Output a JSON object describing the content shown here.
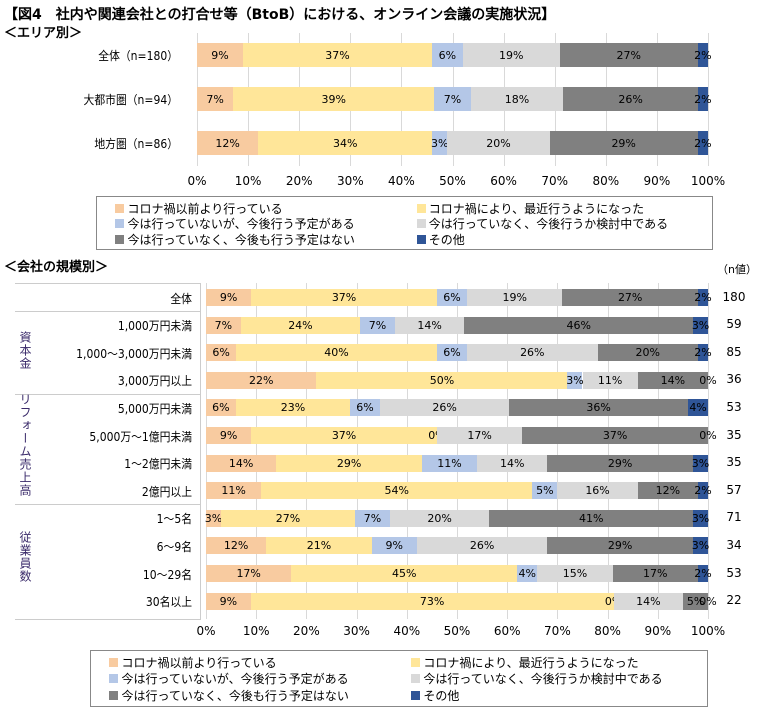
{
  "title": "【図4　社内や関連会社との打合せ等（BtoB）における、オンライン会議の実施状況】",
  "colors": [
    "#F8CBA0",
    "#FFE699",
    "#B4C7E7",
    "#D9D9D9",
    "#808080",
    "#2F5597"
  ],
  "legend": [
    "コロナ禍以前より行っている",
    "コロナ禍により、最近行うようになった",
    "今は行っていないが、今後行う予定がある",
    "今は行っていなく、今後行うか検討中である",
    "今は行っていなく、今後も行う予定はない",
    "その他"
  ],
  "chart_data": [
    {
      "type": "bar",
      "orientation": "horizontal",
      "stacked": true,
      "title": "＜エリア別＞",
      "xlim": [
        0,
        100
      ],
      "ticks": [
        "0%",
        "10%",
        "20%",
        "30%",
        "40%",
        "50%",
        "60%",
        "70%",
        "80%",
        "90%",
        "100%"
      ],
      "categories": [
        "全体（n=180）",
        "大都市圏（n=94）",
        "地方圏（n=86）"
      ],
      "rows": [
        [
          9,
          37,
          6,
          19,
          27,
          2
        ],
        [
          7,
          39,
          7,
          18,
          26,
          2
        ],
        [
          12,
          34,
          3,
          20,
          29,
          2
        ]
      ]
    },
    {
      "type": "bar",
      "orientation": "horizontal",
      "stacked": true,
      "title": "＜会社の規模別＞",
      "n_header": "（n値）",
      "xlim": [
        0,
        100
      ],
      "ticks": [
        "0%",
        "10%",
        "20%",
        "30%",
        "40%",
        "50%",
        "60%",
        "70%",
        "80%",
        "90%",
        "100%"
      ],
      "groups": [
        {
          "name": "",
          "rows": [
            0
          ]
        },
        {
          "name": "資本金",
          "rows": [
            1,
            2,
            3
          ]
        },
        {
          "name": "リフォーム売上高",
          "rows": [
            4,
            5,
            6,
            7
          ]
        },
        {
          "name": "従業員数",
          "rows": [
            8,
            9,
            10,
            11
          ]
        }
      ],
      "categories": [
        "全体",
        "1,000万円未満",
        "1,000～3,000万円未満",
        "3,000万円以上",
        "5,000万円未満",
        "5,000万～1億円未満",
        "1～2億円未満",
        "2億円以上",
        "1～5名",
        "6～9名",
        "10～29名",
        "30名以上"
      ],
      "n": [
        "180",
        "59",
        "85",
        "36",
        "53",
        "35",
        "35",
        "57",
        "71",
        "34",
        "53",
        "22"
      ],
      "rows": [
        [
          9,
          37,
          6,
          19,
          27,
          2
        ],
        [
          7,
          24,
          7,
          14,
          46,
          3
        ],
        [
          6,
          40,
          6,
          26,
          20,
          2
        ],
        [
          22,
          50,
          3,
          11,
          14,
          0
        ],
        [
          6,
          23,
          6,
          26,
          36,
          4
        ],
        [
          9,
          37,
          0,
          17,
          37,
          0
        ],
        [
          14,
          29,
          11,
          14,
          29,
          3
        ],
        [
          11,
          54,
          5,
          16,
          12,
          2
        ],
        [
          3,
          27,
          7,
          20,
          41,
          3
        ],
        [
          12,
          21,
          9,
          26,
          29,
          3
        ],
        [
          17,
          45,
          4,
          15,
          17,
          2
        ],
        [
          9,
          73,
          0,
          14,
          5,
          0
        ]
      ]
    }
  ]
}
